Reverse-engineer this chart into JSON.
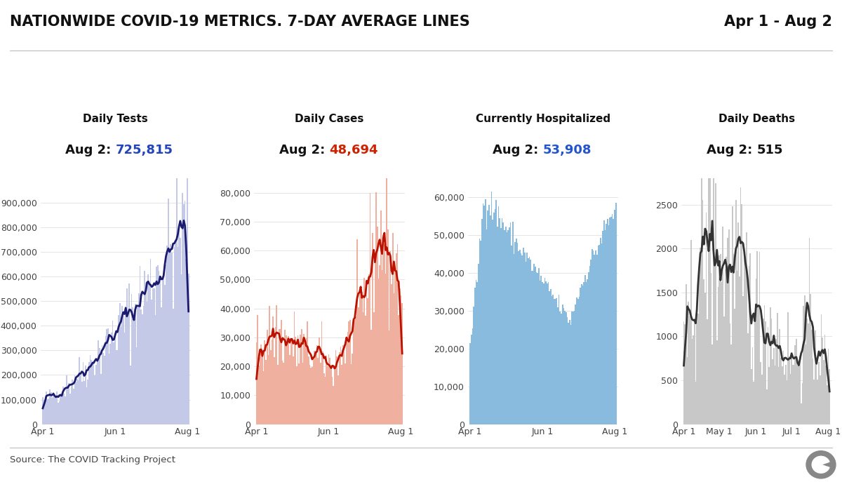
{
  "title": "NATIONWIDE COVID-19 METRICS. 7-DAY AVERAGE LINES",
  "date_range": "Apr 1 - Aug 2",
  "source": "Source: The COVID Tracking Project",
  "panels": [
    {
      "title": "Daily Tests",
      "subtitle_label": "Aug 2:",
      "subtitle_value": "725,815",
      "subtitle_color": "#2244bb",
      "bar_color": "#c5c9e8",
      "line_color": "#1a1a6e",
      "ymax": 1000000,
      "yticks": [
        0,
        100000,
        200000,
        300000,
        400000,
        500000,
        600000,
        700000,
        800000,
        900000
      ],
      "ytick_labels": [
        "0",
        "100,000",
        "200,000",
        "300,000",
        "400,000",
        "500,000",
        "600,000",
        "700,000",
        "800,000",
        "900,000"
      ],
      "xtick_labels": [
        "Apr 1",
        "Jun 1",
        "Aug 1"
      ],
      "xtick_pos": [
        0,
        61,
        122
      ]
    },
    {
      "title": "Daily Cases",
      "subtitle_label": "Aug 2:",
      "subtitle_value": "48,694",
      "subtitle_color": "#cc2200",
      "bar_color": "#f0b0a0",
      "line_color": "#bb1100",
      "ymax": 85000,
      "yticks": [
        0,
        10000,
        20000,
        30000,
        40000,
        50000,
        60000,
        70000,
        80000
      ],
      "ytick_labels": [
        "0",
        "10,000",
        "20,000",
        "30,000",
        "40,000",
        "50,000",
        "60,000",
        "70,000",
        "80,000"
      ],
      "xtick_labels": [
        "Apr 1",
        "Jun 1",
        "Aug 1"
      ],
      "xtick_pos": [
        0,
        61,
        122
      ]
    },
    {
      "title": "Currently Hospitalized",
      "subtitle_label": "Aug 2:",
      "subtitle_value": "53,908",
      "subtitle_color": "#2255cc",
      "bar_color": "#88bbdd",
      "line_color": null,
      "ymax": 65000,
      "yticks": [
        0,
        10000,
        20000,
        30000,
        40000,
        50000,
        60000
      ],
      "ytick_labels": [
        "0",
        "10,000",
        "20,000",
        "30,000",
        "40,000",
        "50,000",
        "60,000"
      ],
      "xtick_labels": [
        "Apr 1",
        "Jun 1",
        "Aug 1"
      ],
      "xtick_pos": [
        0,
        61,
        122
      ]
    },
    {
      "title": "Daily Deaths",
      "subtitle_label": "Aug 2:",
      "subtitle_value": "515",
      "subtitle_color": "#111111",
      "bar_color": "#c8c8c8",
      "line_color": "#333333",
      "ymax": 2800,
      "yticks": [
        0,
        500,
        1000,
        1500,
        2000,
        2500
      ],
      "ytick_labels": [
        "0",
        "500",
        "1000",
        "1500",
        "2000",
        "2500"
      ],
      "xtick_labels": [
        "Apr 1",
        "May 1",
        "Jun 1",
        "Jul 1",
        "Aug 1"
      ],
      "xtick_pos": [
        0,
        30,
        61,
        91,
        122
      ]
    }
  ],
  "background_color": "#ffffff",
  "title_fontsize": 15,
  "panel_title_fontsize": 11,
  "subtitle_fontsize": 13,
  "tick_fontsize": 9
}
